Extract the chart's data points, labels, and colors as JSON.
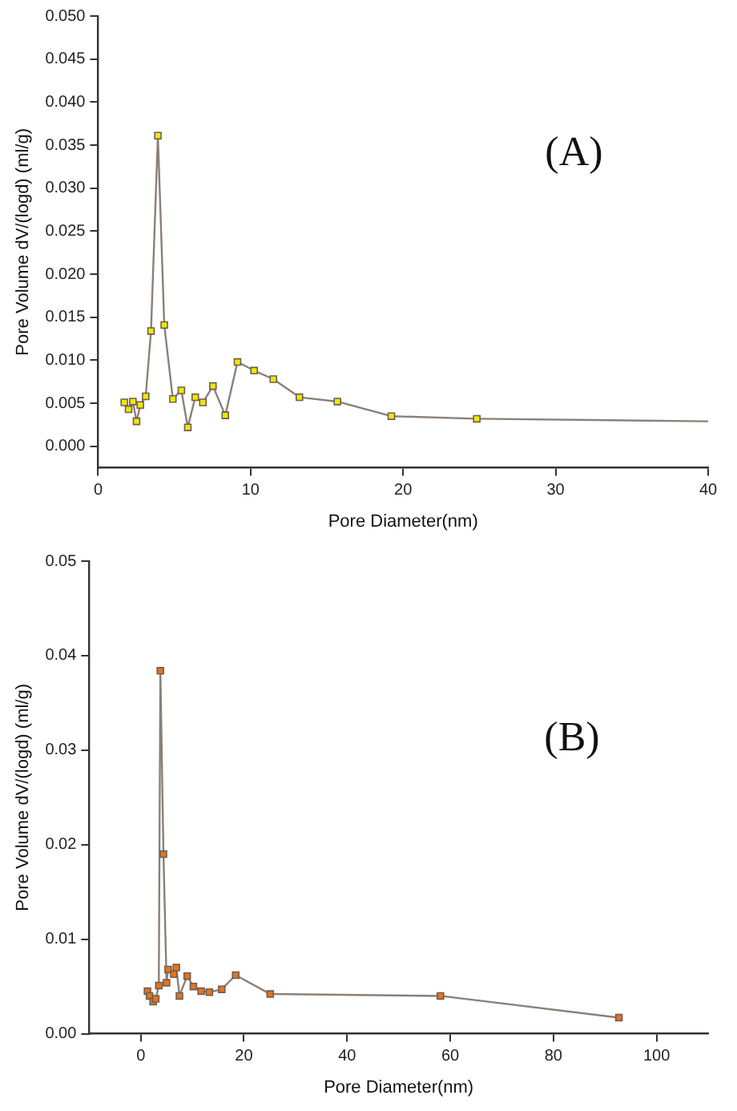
{
  "chart_data": [
    {
      "type": "line",
      "xlabel": "Pore Diameter(nm)",
      "ylabel": "Pore Volume dV/(logd) (ml/g)",
      "annotations": [
        "(A)"
      ],
      "marker": "square",
      "grid": false,
      "legend": false,
      "xlim": [
        0,
        40
      ],
      "xticks": [
        0,
        10,
        20,
        30,
        40
      ],
      "ylim": [
        -0.0025,
        0.05
      ],
      "yticks": [
        {
          "value": 0,
          "label": "0.000"
        },
        {
          "value": 0.005,
          "label": "0.005"
        },
        {
          "value": 0.01,
          "label": "0.010"
        },
        {
          "value": 0.015,
          "label": "0.015"
        },
        {
          "value": 0.02,
          "label": "0.020"
        },
        {
          "value": 0.025,
          "label": "0.025"
        },
        {
          "value": 0.03,
          "label": "0.030"
        },
        {
          "value": 0.035,
          "label": "0.035"
        },
        {
          "value": 0.04,
          "label": "0.040"
        },
        {
          "value": 0.045,
          "label": "0.045"
        },
        {
          "value": 0.05,
          "label": "0.050"
        }
      ],
      "series": [
        {
          "color": "#f2e600",
          "x": [
            1.72,
            2.0,
            2.28,
            2.52,
            2.77,
            3.12,
            3.47,
            3.92,
            4.34,
            4.9,
            5.46,
            5.88,
            6.37,
            6.87,
            7.53,
            8.34,
            9.14,
            10.23,
            11.49,
            13.2,
            15.69,
            19.23,
            24.83
          ],
          "values": [
            0.0051,
            0.0043,
            0.0052,
            0.0029,
            0.0048,
            0.0058,
            0.0134,
            0.0361,
            0.0141,
            0.0055,
            0.0065,
            0.0022,
            0.0057,
            0.0051,
            0.007,
            0.0036,
            0.0098,
            0.0088,
            0.0078,
            0.0057,
            0.0052,
            0.0035,
            0.0032
          ]
        },
        {
          "color": "#8a8078",
          "marker": "none",
          "x": [
            24.83,
            40
          ],
          "values": [
            0.0032,
            0.0029
          ]
        }
      ]
    },
    {
      "type": "line",
      "xlabel": "Pore Diameter(nm)",
      "ylabel": "Pore Volume dV/(logd) (ml/g)",
      "annotations": [
        "(B)"
      ],
      "marker": "square",
      "grid": false,
      "legend": false,
      "xlim": [
        -10,
        110
      ],
      "xticks": [
        0,
        20,
        40,
        60,
        80,
        100
      ],
      "ylim": [
        0,
        0.05
      ],
      "yticks": [
        {
          "value": 0,
          "label": "0.00"
        },
        0.01,
        0.02,
        0.03,
        0.04,
        0.05
      ],
      "series": [
        {
          "color": "#e8731a",
          "x": [
            1.3,
            1.7,
            2.4,
            2.9,
            3.5,
            3.8,
            4.4,
            5.0,
            5.3,
            6.4,
            6.9,
            7.5,
            9.0,
            10.2,
            11.7,
            13.3,
            15.7,
            18.4,
            25.1,
            58.1,
            92.7
          ],
          "values": [
            0.0045,
            0.004,
            0.0034,
            0.0037,
            0.0051,
            0.0384,
            0.019,
            0.0054,
            0.0068,
            0.0063,
            0.007,
            0.004,
            0.0061,
            0.005,
            0.0045,
            0.0044,
            0.0047,
            0.0062,
            0.0042,
            0.004,
            0.0017
          ]
        }
      ]
    }
  ]
}
